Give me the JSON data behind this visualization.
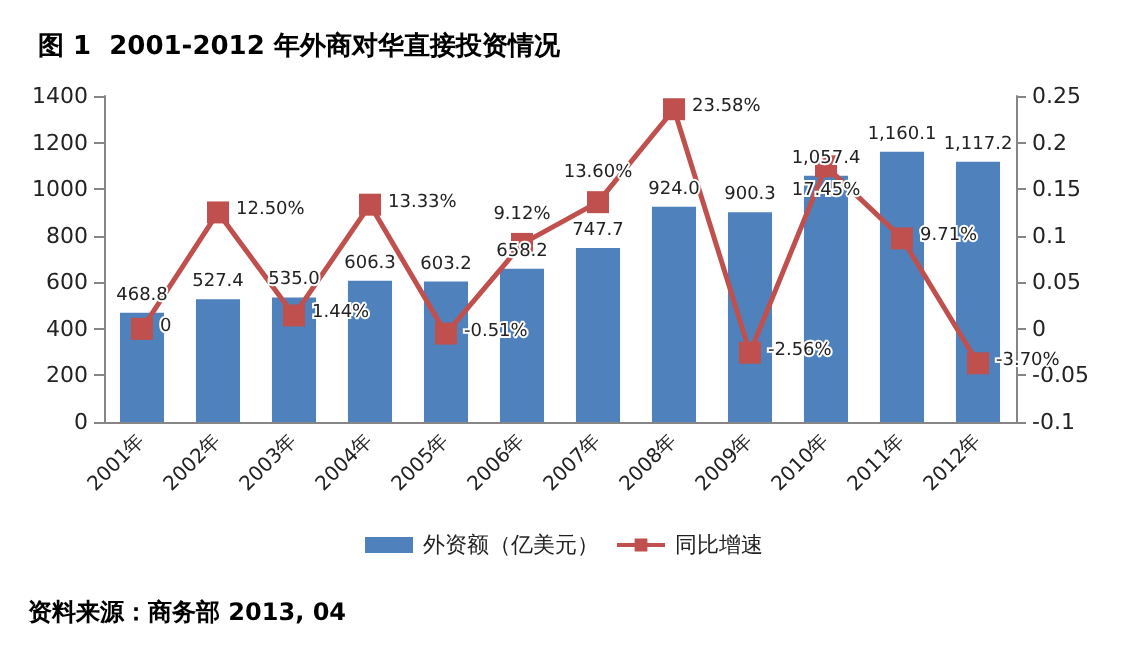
{
  "chart_data": {
    "type": "bar",
    "title": "图 1  2001-2012 年外商对华直接投资情况",
    "categories": [
      "2001年",
      "2002年",
      "2003年",
      "2004年",
      "2005年",
      "2006年",
      "2007年",
      "2008年",
      "2009年",
      "2010年",
      "2011年",
      "2012年"
    ],
    "series": [
      {
        "name": "外资额（亿美元）",
        "type": "bar",
        "color": "#4f81bd",
        "values": [
          468.8,
          527.4,
          535.0,
          606.3,
          603.2,
          658.2,
          747.7,
          924.0,
          900.3,
          1057.4,
          1160.1,
          1117.2
        ],
        "value_labels": [
          "468.8",
          "527.4",
          "535.0",
          "606.3",
          "603.2",
          "658.2",
          "747.7",
          "924.0",
          "900.3",
          "1,057.4",
          "1,160.1",
          "1,117.2"
        ]
      },
      {
        "name": "同比增速",
        "type": "line",
        "axis": "y2",
        "color": "#c0504d",
        "marker": "square",
        "values": [
          0,
          0.125,
          0.0144,
          0.1333,
          -0.0051,
          0.0912,
          0.136,
          0.2358,
          -0.0256,
          0.1745,
          0.0971,
          -0.037
        ],
        "value_labels": [
          "0",
          "12.50%",
          "1.44%",
          "13.33%",
          "-0.51%",
          "9.12%",
          "13.60%",
          "23.58%",
          "-2.56%",
          "17.45%",
          "9.71%",
          "-3.70%"
        ]
      }
    ],
    "ylim": [
      0,
      1400
    ],
    "yticks": [
      0,
      200,
      400,
      600,
      800,
      1000,
      1200,
      1400
    ],
    "y2lim": [
      -0.1,
      0.25
    ],
    "y2ticks": [
      -0.1,
      -0.05,
      0,
      0.05,
      0.1,
      0.15,
      0.2,
      0.25
    ],
    "grid": false,
    "legend": "bottom",
    "annotations": [
      "资料来源：商务部 2013, 04"
    ]
  }
}
